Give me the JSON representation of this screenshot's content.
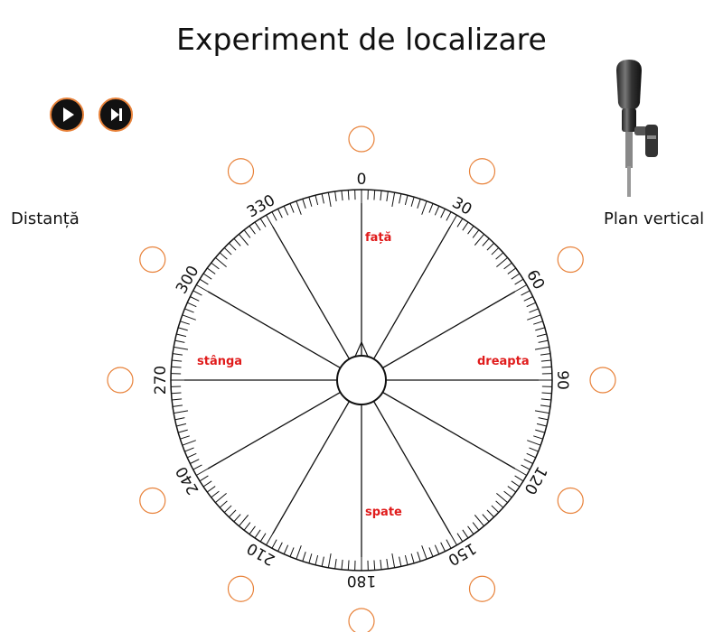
{
  "header": {
    "title": "Experiment de localizare"
  },
  "controls": {
    "play": "play",
    "next": "skip-next"
  },
  "labels": {
    "distance": "Distanță",
    "vertical_plane": "Plan vertical"
  },
  "dial": {
    "tick_labels": [
      "0",
      "30",
      "60",
      "90",
      "120",
      "150",
      "180",
      "210",
      "240",
      "270",
      "300",
      "330"
    ],
    "direction_labels": {
      "front": "față",
      "right": "dreapta",
      "back": "spate",
      "left": "stânga"
    },
    "response_options": [
      "0",
      "30",
      "60",
      "90",
      "120",
      "150",
      "180",
      "210",
      "240",
      "270",
      "300",
      "330"
    ]
  },
  "colors": {
    "accent": "#e8823a",
    "direction_text": "#e01b1b",
    "line": "#111111"
  }
}
